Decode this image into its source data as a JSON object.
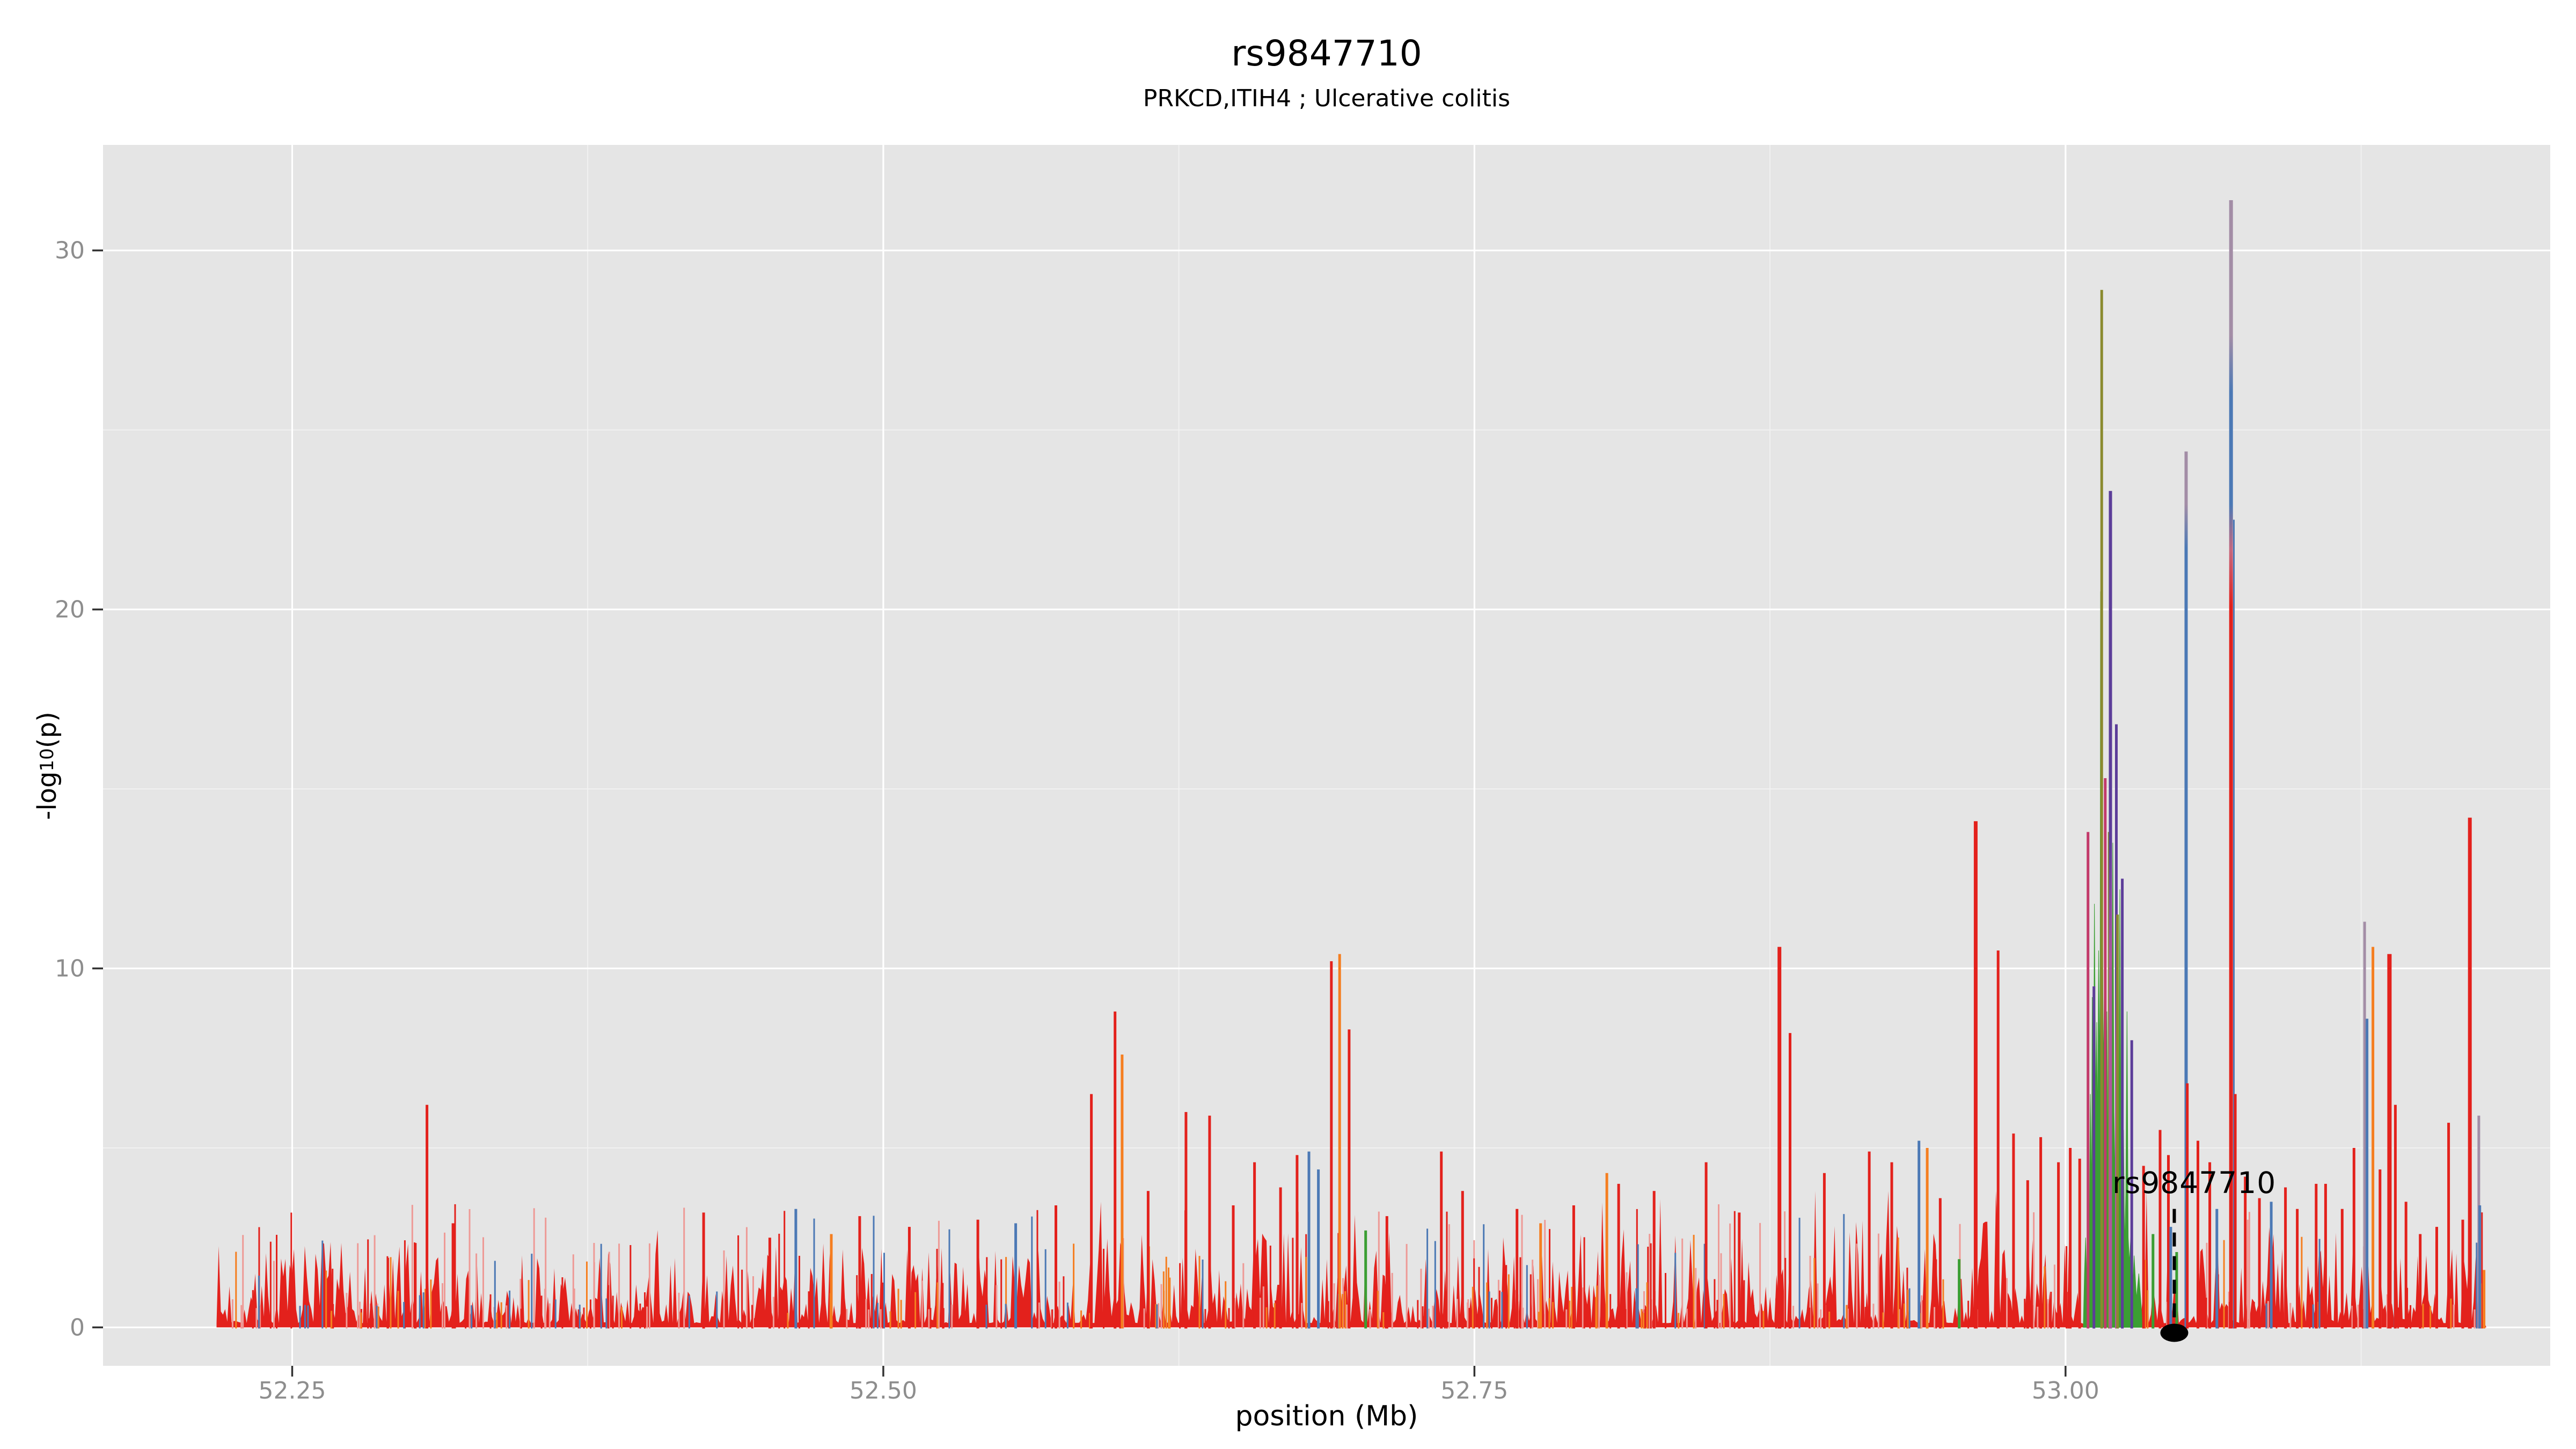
{
  "header": {
    "title": "rs9847710",
    "subtitle": "PRKCD,ITIH4 ; Ulcerative colitis"
  },
  "axes": {
    "x": {
      "label": "position (Mb)",
      "tick_labels": [
        "52.25",
        "52.50",
        "52.75",
        "53.00"
      ],
      "tick_values": [
        52.25,
        52.5,
        52.75,
        53.0
      ],
      "minor_tick_values": [
        52.375,
        52.625,
        52.875,
        53.125
      ],
      "range": [
        52.17,
        53.205
      ]
    },
    "y": {
      "label_prefix": "-log",
      "label_sub": "10",
      "label_suffix": "(p)",
      "tick_labels": [
        "0",
        "10",
        "20",
        "30"
      ],
      "tick_values": [
        0,
        10,
        20,
        30
      ],
      "minor_tick_values": [
        5,
        15,
        25
      ],
      "range": [
        -1.07,
        32.94
      ]
    }
  },
  "annotation": {
    "label": "rs9847710",
    "x": 53.046,
    "point_y": -0.15,
    "dash_top_y": 3.3
  },
  "colors": {
    "panel_bg": "#E5E5E5",
    "grid_major": "#FFFFFF",
    "grid_minor": "#FFFFFF",
    "tick_label": "#8D8D8D",
    "tick_mark": "#333333",
    "text": "#000000",
    "red": "#E3211C",
    "pink": "#EE9A96",
    "orange": "#F57E20",
    "green": "#3B9E33",
    "blue": "#4C79B5",
    "violet": "#5C3D99",
    "orchid": "#B0569E",
    "olive": "#8A8A2E",
    "mauve": "#A38DA6",
    "crimson": "#C23A6B",
    "annotation": "#000000",
    "gradients": {
      "tall_multi": [
        [
          "#A38DA6",
          0
        ],
        [
          "#A38DA6",
          0.12
        ],
        [
          "#4C79B5",
          0.17
        ],
        [
          "#4C79B5",
          0.27
        ],
        [
          "#C7697F",
          0.31
        ],
        [
          "#E3211C",
          0.36
        ],
        [
          "#E3211C",
          1
        ]
      ],
      "blue_mauve_tip": [
        [
          "#A38DA6",
          0
        ],
        [
          "#A38DA6",
          0.06
        ],
        [
          "#4C79B5",
          0.11
        ],
        [
          "#4C79B5",
          1
        ]
      ],
      "violet_orchid": [
        [
          "#5C3D99",
          0
        ],
        [
          "#5C3D99",
          0.42
        ],
        [
          "#B0569E",
          0.56
        ],
        [
          "#B0569E",
          1
        ]
      ]
    }
  },
  "chart_data": {
    "type": "area",
    "description": "Regional GWAS association spike plot (-log10 p-values vs genomic position, chr3 PRKCD/ITIH4 locus, Ulcerative colitis), ggplot2 grey theme",
    "title": "rs9847710",
    "subtitle": "PRKCD,ITIH4 ; Ulcerative colitis",
    "xlabel": "position (Mb)",
    "ylabel": "-log10(p)",
    "xlim": [
      52.17,
      53.205
    ],
    "ylim": [
      -1.07,
      32.94
    ],
    "grid": true,
    "legend": false,
    "data_x_start": 52.218,
    "data_x_end": 53.178,
    "highlight_snp": {
      "name": "rs9847710",
      "x": 53.046,
      "y": -0.15
    },
    "max_peak": {
      "x": 53.07,
      "y": 31.4
    },
    "notable_peaks": [
      {
        "x": 52.307,
        "v": 6.2,
        "c": "red"
      },
      {
        "x": 52.318,
        "v": 2.9,
        "c": "red"
      },
      {
        "x": 52.424,
        "v": 3.2,
        "c": "red"
      },
      {
        "x": 52.452,
        "v": 2.5,
        "c": "red"
      },
      {
        "x": 52.463,
        "v": 3.3,
        "c": "blue"
      },
      {
        "x": 52.478,
        "v": 2.6,
        "c": "orange"
      },
      {
        "x": 52.49,
        "v": 3.1,
        "c": "red"
      },
      {
        "x": 52.511,
        "v": 2.8,
        "c": "red"
      },
      {
        "x": 52.54,
        "v": 3.0,
        "c": "red"
      },
      {
        "x": 52.556,
        "v": 2.9,
        "c": "blue"
      },
      {
        "x": 52.573,
        "v": 3.4,
        "c": "red"
      },
      {
        "x": 52.588,
        "v": 6.5,
        "c": "red"
      },
      {
        "x": 52.598,
        "v": 8.8,
        "c": "red"
      },
      {
        "x": 52.601,
        "v": 7.6,
        "c": "orange"
      },
      {
        "x": 52.612,
        "v": 3.8,
        "c": "red"
      },
      {
        "x": 52.628,
        "v": 6.0,
        "c": "red"
      },
      {
        "x": 52.638,
        "v": 5.9,
        "c": "red"
      },
      {
        "x": 52.648,
        "v": 3.4,
        "c": "red"
      },
      {
        "x": 52.657,
        "v": 4.6,
        "c": "red"
      },
      {
        "x": 52.668,
        "v": 3.9,
        "c": "red"
      },
      {
        "x": 52.675,
        "v": 4.8,
        "c": "red"
      },
      {
        "x": 52.68,
        "v": 4.9,
        "c": "blue"
      },
      {
        "x": 52.684,
        "v": 4.4,
        "c": "blue"
      },
      {
        "x": 52.6895,
        "v": 10.2,
        "c": "red"
      },
      {
        "x": 52.693,
        "v": 10.4,
        "c": "orange"
      },
      {
        "x": 52.697,
        "v": 8.3,
        "c": "red"
      },
      {
        "x": 52.704,
        "v": 2.7,
        "c": "green"
      },
      {
        "x": 52.713,
        "v": 3.1,
        "c": "red"
      },
      {
        "x": 52.736,
        "v": 4.9,
        "c": "red"
      },
      {
        "x": 52.745,
        "v": 3.8,
        "c": "red"
      },
      {
        "x": 52.768,
        "v": 3.3,
        "c": "red"
      },
      {
        "x": 52.778,
        "v": 2.9,
        "c": "orange"
      },
      {
        "x": 52.792,
        "v": 3.4,
        "c": "red"
      },
      {
        "x": 52.806,
        "v": 4.3,
        "c": "orange"
      },
      {
        "x": 52.811,
        "v": 4.0,
        "c": "red"
      },
      {
        "x": 52.826,
        "v": 3.8,
        "c": "red"
      },
      {
        "x": 52.848,
        "v": 4.6,
        "c": "red"
      },
      {
        "x": 52.862,
        "v": 3.2,
        "c": "red"
      },
      {
        "x": 52.879,
        "v": 10.6,
        "c": "red",
        "w": 7
      },
      {
        "x": 52.8835,
        "v": 8.2,
        "c": "red"
      },
      {
        "x": 52.898,
        "v": 4.3,
        "c": "red"
      },
      {
        "x": 52.917,
        "v": 4.9,
        "c": "red"
      },
      {
        "x": 52.9265,
        "v": 4.6,
        "c": "red"
      },
      {
        "x": 52.938,
        "v": 5.2,
        "c": "blue"
      },
      {
        "x": 52.9415,
        "v": 5.0,
        "c": "orange"
      },
      {
        "x": 52.947,
        "v": 3.6,
        "c": "red"
      },
      {
        "x": 52.955,
        "v": 1.9,
        "c": "green"
      },
      {
        "x": 52.962,
        "v": 14.1,
        "c": "red",
        "w": 7
      },
      {
        "x": 52.9715,
        "v": 10.5,
        "c": "red"
      },
      {
        "x": 52.978,
        "v": 5.4,
        "c": "red"
      },
      {
        "x": 52.984,
        "v": 4.1,
        "c": "red"
      },
      {
        "x": 52.9895,
        "v": 5.3,
        "c": "red"
      },
      {
        "x": 52.997,
        "v": 4.6,
        "c": "red"
      },
      {
        "x": 53.002,
        "v": 5.0,
        "c": "red"
      },
      {
        "x": 53.006,
        "v": 4.7,
        "c": "red"
      },
      {
        "x": 53.0095,
        "v": 13.8,
        "c": "crimson"
      },
      {
        "x": 53.012,
        "v": 9.5,
        "c": "violet"
      },
      {
        "x": 53.0153,
        "v": 28.9,
        "c": "olive"
      },
      {
        "x": 53.0168,
        "v": 15.3,
        "c": "crimson"
      },
      {
        "x": 53.0185,
        "v": 13.8,
        "c": "olive"
      },
      {
        "x": 53.019,
        "v": 23.3,
        "g": "violet_orchid",
        "w": 6
      },
      {
        "x": 53.0215,
        "v": 16.8,
        "g": "violet_orchid"
      },
      {
        "x": 53.022,
        "v": 11.5,
        "c": "olive"
      },
      {
        "x": 53.024,
        "v": 12.5,
        "c": "violet"
      },
      {
        "x": 53.028,
        "v": 8.0,
        "c": "violet"
      },
      {
        "x": 53.033,
        "v": 4.5,
        "c": "red"
      },
      {
        "x": 53.037,
        "v": 2.6,
        "c": "green"
      },
      {
        "x": 53.04,
        "v": 5.5,
        "c": "red"
      },
      {
        "x": 53.0435,
        "v": 4.8,
        "c": "red"
      },
      {
        "x": 53.0445,
        "v": 2.8,
        "c": "blue"
      },
      {
        "x": 53.047,
        "v": 2.1,
        "c": "green"
      },
      {
        "x": 53.051,
        "v": 24.4,
        "g": "blue_mauve_tip",
        "w": 6
      },
      {
        "x": 53.0515,
        "v": 6.8,
        "c": "red"
      },
      {
        "x": 53.056,
        "v": 5.2,
        "c": "red"
      },
      {
        "x": 53.061,
        "v": 4.6,
        "c": "red"
      },
      {
        "x": 53.064,
        "v": 3.3,
        "c": "blue"
      },
      {
        "x": 53.07,
        "v": 31.4,
        "g": "tall_multi",
        "w": 7
      },
      {
        "x": 53.0712,
        "v": 22.5,
        "c": "blue",
        "w": 3
      },
      {
        "x": 53.0718,
        "v": 6.5,
        "c": "red"
      },
      {
        "x": 53.076,
        "v": 4.2,
        "c": "red"
      },
      {
        "x": 53.082,
        "v": 3.6,
        "c": "red"
      },
      {
        "x": 53.087,
        "v": 3.5,
        "c": "blue"
      },
      {
        "x": 53.093,
        "v": 3.9,
        "c": "red"
      },
      {
        "x": 53.098,
        "v": 3.3,
        "c": "red"
      },
      {
        "x": 53.106,
        "v": 4.0,
        "c": "red"
      },
      {
        "x": 53.11,
        "v": 4.0,
        "c": "red"
      },
      {
        "x": 53.117,
        "v": 3.3,
        "c": "red"
      },
      {
        "x": 53.122,
        "v": 5.0,
        "c": "red"
      },
      {
        "x": 53.1265,
        "v": 11.3,
        "c": "mauve"
      },
      {
        "x": 53.1275,
        "v": 8.6,
        "c": "blue"
      },
      {
        "x": 53.13,
        "v": 10.6,
        "c": "orange"
      },
      {
        "x": 53.133,
        "v": 4.4,
        "c": "red"
      },
      {
        "x": 53.137,
        "v": 10.4,
        "c": "red",
        "w": 8
      },
      {
        "x": 53.1395,
        "v": 6.2,
        "c": "red"
      },
      {
        "x": 53.144,
        "v": 3.5,
        "c": "red"
      },
      {
        "x": 53.15,
        "v": 2.6,
        "c": "red"
      },
      {
        "x": 53.157,
        "v": 2.8,
        "c": "red"
      },
      {
        "x": 53.162,
        "v": 5.7,
        "c": "red"
      },
      {
        "x": 53.168,
        "v": 3.0,
        "c": "red"
      },
      {
        "x": 53.171,
        "v": 14.2,
        "c": "red",
        "w": 7
      },
      {
        "x": 53.1748,
        "v": 5.9,
        "c": "mauve"
      },
      {
        "x": 53.1752,
        "v": 3.4,
        "c": "blue"
      },
      {
        "x": 53.177,
        "v": 1.6,
        "c": "orange"
      }
    ],
    "green_cluster_outline": [
      [
        53.0075,
        0
      ],
      [
        53.008,
        1.5
      ],
      [
        53.0085,
        2.5
      ],
      [
        53.009,
        1.2
      ],
      [
        53.0095,
        4.8
      ],
      [
        53.01,
        2.2
      ],
      [
        53.0105,
        6.5
      ],
      [
        53.011,
        3.5
      ],
      [
        53.0113,
        9.2
      ],
      [
        53.0118,
        5.0
      ],
      [
        53.0122,
        11.8
      ],
      [
        53.0128,
        6.2
      ],
      [
        53.0132,
        8.5
      ],
      [
        53.0136,
        5.5
      ],
      [
        53.014,
        10.5
      ],
      [
        53.0146,
        6.8
      ],
      [
        53.0148,
        20.5
      ],
      [
        53.01495,
        9.0
      ],
      [
        53.0151,
        28.4
      ],
      [
        53.0153,
        8.0
      ],
      [
        53.0156,
        12.0
      ],
      [
        53.016,
        7.0
      ],
      [
        53.0165,
        10.0
      ],
      [
        53.017,
        5.5
      ],
      [
        53.0175,
        8.8
      ],
      [
        53.018,
        4.5
      ],
      [
        53.0185,
        7.2
      ],
      [
        53.019,
        9.8
      ],
      [
        53.0195,
        5.2
      ],
      [
        53.02,
        13.5
      ],
      [
        53.0205,
        6.0
      ],
      [
        53.021,
        4.0
      ],
      [
        53.0215,
        6.8
      ],
      [
        53.022,
        3.2
      ],
      [
        53.0225,
        5.0
      ],
      [
        53.023,
        12.2
      ],
      [
        53.0235,
        4.2
      ],
      [
        53.024,
        2.8
      ],
      [
        53.0245,
        5.5
      ],
      [
        53.025,
        2.2
      ],
      [
        53.0255,
        3.8
      ],
      [
        53.026,
        8.8
      ],
      [
        53.0265,
        2.5
      ],
      [
        53.027,
        1.8
      ],
      [
        53.028,
        3.0
      ],
      [
        53.0285,
        1.2
      ],
      [
        53.029,
        2.0
      ],
      [
        53.03,
        0.8
      ],
      [
        53.031,
        1.5
      ],
      [
        53.032,
        0.6
      ],
      [
        53.0325,
        0
      ]
    ],
    "noise": {
      "x_start": 52.218,
      "x_end": 53.178,
      "seed": 7,
      "step_mb": 0.00091,
      "green_zone": [
        53.0075,
        53.0325
      ],
      "regions": [
        [
          52.218,
          52.31,
          1.0
        ],
        [
          52.31,
          52.45,
          0.85
        ],
        [
          52.45,
          52.6,
          1.05
        ],
        [
          52.6,
          52.75,
          1.15
        ],
        [
          52.75,
          52.9,
          1.1
        ],
        [
          52.9,
          53.005,
          1.25
        ],
        [
          53.005,
          53.03,
          0.6
        ],
        [
          53.03,
          53.1,
          1.3
        ],
        [
          53.1,
          53.145,
          1.15
        ],
        [
          53.145,
          53.178,
          0.95
        ]
      ],
      "extra_spikes": {
        "pink": {
          "count": 150,
          "seed": 23,
          "vmax": 3.0,
          "vbase": 0.5
        },
        "red": {
          "count": 130,
          "seed": 17,
          "vmax": 3.2,
          "vbase": 0.5
        },
        "orange": {
          "count": 85,
          "seed": 11,
          "vmax": 2.2,
          "vbase": 0.4
        },
        "blue": {
          "count": 55,
          "seed": 13,
          "vmax": 3.0,
          "vbase": 0.6
        }
      }
    }
  }
}
